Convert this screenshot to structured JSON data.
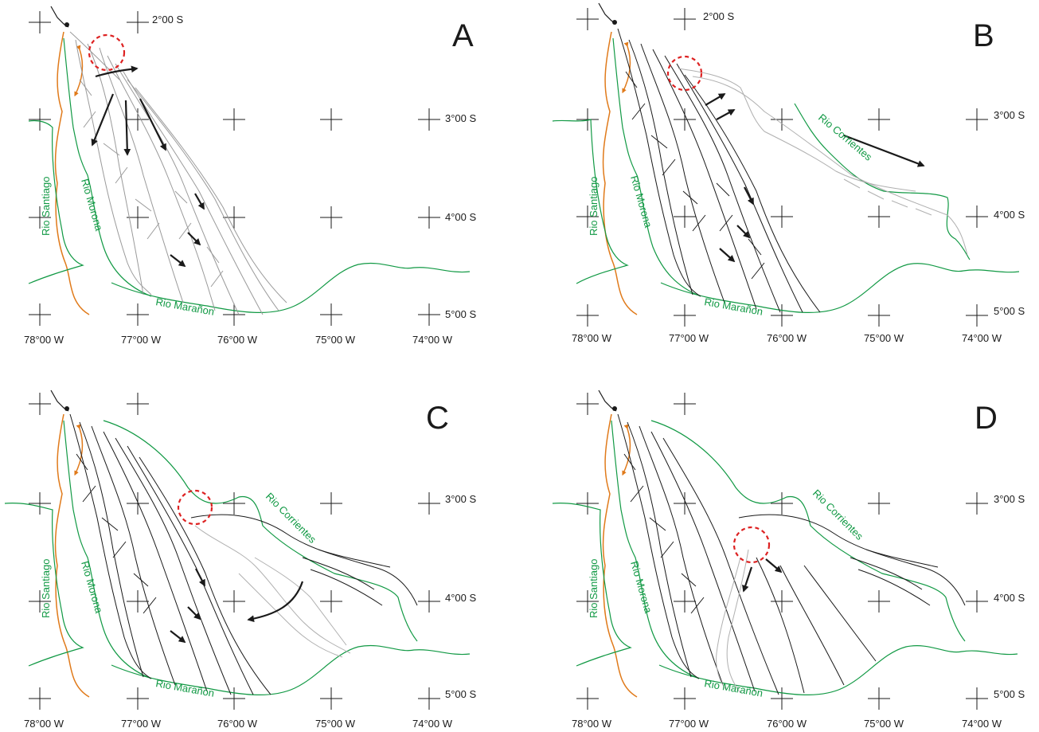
{
  "panels": [
    {
      "letter": "A",
      "lat_labels": [
        "2°00 S",
        "3°00 S",
        "4°00 S",
        "5°00 S"
      ],
      "lon_labels": [
        "78°00 W",
        "77°00 W",
        "76°00 W",
        "75°00 W",
        "74°00 W"
      ],
      "rivers": {
        "santiago": "Rio Santiago",
        "morona": "Rio Morona",
        "maranon": "Rio Marañon"
      }
    },
    {
      "letter": "B",
      "lat_labels": [
        "2°00 S",
        "3°00 S",
        "4°00 S",
        "5°00 S"
      ],
      "lon_labels": [
        "78°00 W",
        "77°00 W",
        "76°00 W",
        "75°00 W",
        "74°00 W"
      ],
      "rivers": {
        "santiago": "Rio Santiago",
        "morona": "Rio Morona",
        "maranon": "Rio Marañon",
        "corrientes": "Rio Corrientes"
      }
    },
    {
      "letter": "C",
      "lat_labels": [
        "3°00 S",
        "4°00 S",
        "5°00 S"
      ],
      "lon_labels": [
        "78°00 W",
        "77°00 W",
        "76°00 W",
        "75°00 W",
        "74°00 W"
      ],
      "rivers": {
        "santiago": "Rio Santiago",
        "morona": "Rio Morona",
        "maranon": "Rio Marañon",
        "corrientes": "Rio Corrientes"
      }
    },
    {
      "letter": "D",
      "lat_labels": [
        "3°00 S",
        "4°00 S",
        "5°00 S"
      ],
      "lon_labels": [
        "78°00 W",
        "77°00 W",
        "76°00 W",
        "75°00 W",
        "74°00 W"
      ],
      "rivers": {
        "santiago": "Rio Santiago",
        "morona": "Rio Morona",
        "maranon": "Rio Marañon",
        "corrientes": "Rio Corrientes"
      }
    }
  ],
  "colors": {
    "river_outline": "#119944",
    "fault_line": "#e07a1a",
    "capture_circle": "#dd2222",
    "active_network": "#1a1a1a",
    "abandoned_network": "#9a9a9a"
  }
}
